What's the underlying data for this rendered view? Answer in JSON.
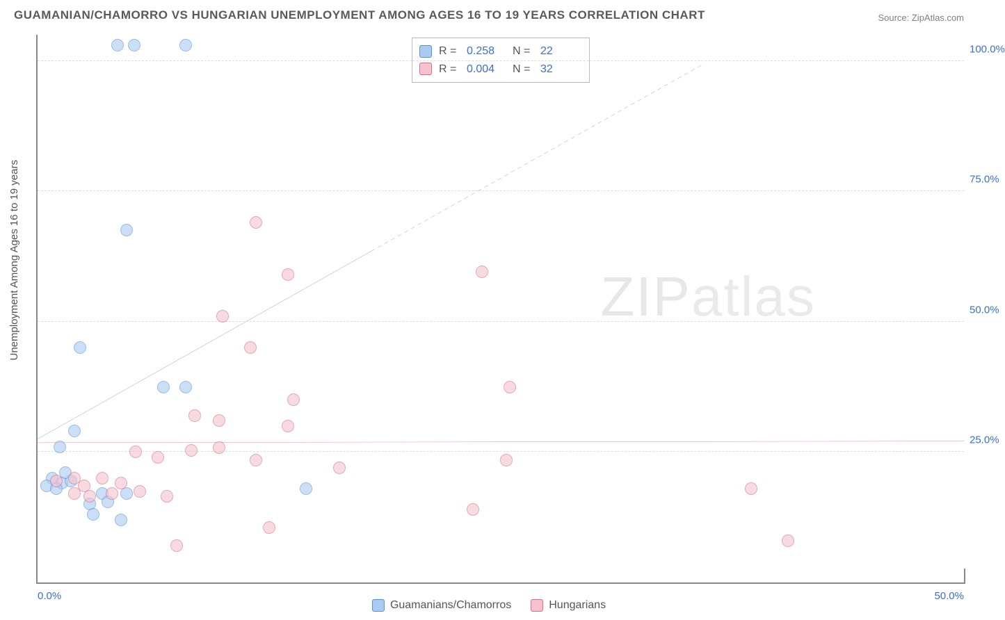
{
  "title": "GUAMANIAN/CHAMORRO VS HUNGARIAN UNEMPLOYMENT AMONG AGES 16 TO 19 YEARS CORRELATION CHART",
  "source_label": "Source: ZipAtlas.com",
  "y_axis_label": "Unemployment Among Ages 16 to 19 years",
  "watermark": {
    "left": "ZIP",
    "right": "atlas"
  },
  "chart": {
    "type": "scatter",
    "background_color": "#ffffff",
    "axis_color": "#888888",
    "grid_color": "#dcdcdc",
    "grid_dash": "4,4",
    "xlim": [
      0,
      50
    ],
    "ylim": [
      0,
      105
    ],
    "x_ticks": [
      {
        "value": 0,
        "label": "0.0%"
      },
      {
        "value": 50,
        "label": "50.0%"
      }
    ],
    "y_ticks": [
      {
        "value": 25,
        "label": "25.0%"
      },
      {
        "value": 50,
        "label": "50.0%"
      },
      {
        "value": 75,
        "label": "75.0%"
      },
      {
        "value": 100,
        "label": "100.0%"
      }
    ],
    "point_radius": 9,
    "point_opacity": 0.6,
    "series": [
      {
        "id": "guamanians",
        "label": "Guamanians/Chamorros",
        "fill_color": "#aaccf2",
        "stroke_color": "#5a8fd6",
        "r_label": "R =",
        "r_value": "0.258",
        "n_label": "N =",
        "n_value": "22",
        "trend": {
          "color": "#2f6fd0",
          "width": 2.5,
          "dash": "",
          "y_intercept": 27.5,
          "slope": 2.0,
          "solid_x_end": 18,
          "dashed_x_end": 36
        },
        "points": [
          {
            "x": 4.3,
            "y": 103
          },
          {
            "x": 5.2,
            "y": 103
          },
          {
            "x": 8.0,
            "y": 103
          },
          {
            "x": 4.8,
            "y": 67.5
          },
          {
            "x": 2.3,
            "y": 45
          },
          {
            "x": 6.8,
            "y": 37.5
          },
          {
            "x": 8.0,
            "y": 37.5
          },
          {
            "x": 2.0,
            "y": 29
          },
          {
            "x": 1.2,
            "y": 26
          },
          {
            "x": 0.8,
            "y": 20
          },
          {
            "x": 1.3,
            "y": 19
          },
          {
            "x": 1.8,
            "y": 19.5
          },
          {
            "x": 0.5,
            "y": 18.5
          },
          {
            "x": 1.0,
            "y": 18
          },
          {
            "x": 3.5,
            "y": 17
          },
          {
            "x": 4.8,
            "y": 17
          },
          {
            "x": 2.8,
            "y": 15
          },
          {
            "x": 3.8,
            "y": 15.5
          },
          {
            "x": 3.0,
            "y": 13
          },
          {
            "x": 4.5,
            "y": 12
          },
          {
            "x": 14.5,
            "y": 18
          },
          {
            "x": 1.5,
            "y": 21
          }
        ]
      },
      {
        "id": "hungarians",
        "label": "Hungarians",
        "fill_color": "#f5c2ce",
        "stroke_color": "#d96b8a",
        "r_label": "R =",
        "r_value": "0.004",
        "n_label": "N =",
        "n_value": "32",
        "trend": {
          "color": "#d94a76",
          "width": 2.5,
          "dash": "",
          "y_intercept": 26.8,
          "slope": 0.006,
          "solid_x_end": 50,
          "dashed_x_end": 50
        },
        "points": [
          {
            "x": 11.8,
            "y": 69
          },
          {
            "x": 13.5,
            "y": 59
          },
          {
            "x": 24.0,
            "y": 59.5
          },
          {
            "x": 10.0,
            "y": 51
          },
          {
            "x": 11.5,
            "y": 45
          },
          {
            "x": 25.5,
            "y": 37.5
          },
          {
            "x": 13.8,
            "y": 35
          },
          {
            "x": 8.5,
            "y": 32
          },
          {
            "x": 9.8,
            "y": 31
          },
          {
            "x": 13.5,
            "y": 30
          },
          {
            "x": 5.3,
            "y": 25
          },
          {
            "x": 6.5,
            "y": 24
          },
          {
            "x": 8.3,
            "y": 25.3
          },
          {
            "x": 9.8,
            "y": 25.8
          },
          {
            "x": 11.8,
            "y": 23.5
          },
          {
            "x": 16.3,
            "y": 22
          },
          {
            "x": 25.3,
            "y": 23.5
          },
          {
            "x": 1.0,
            "y": 19.5
          },
          {
            "x": 2.0,
            "y": 20
          },
          {
            "x": 2.5,
            "y": 18.5
          },
          {
            "x": 3.5,
            "y": 20
          },
          {
            "x": 4.5,
            "y": 19
          },
          {
            "x": 5.5,
            "y": 17.5
          },
          {
            "x": 7.0,
            "y": 16.5
          },
          {
            "x": 2.8,
            "y": 16.5
          },
          {
            "x": 23.5,
            "y": 14
          },
          {
            "x": 12.5,
            "y": 10.5
          },
          {
            "x": 7.5,
            "y": 7
          },
          {
            "x": 38.5,
            "y": 18
          },
          {
            "x": 40.5,
            "y": 8
          },
          {
            "x": 2.0,
            "y": 17
          },
          {
            "x": 4.0,
            "y": 17
          }
        ]
      }
    ]
  },
  "legend_top_swatch_radius": 3
}
